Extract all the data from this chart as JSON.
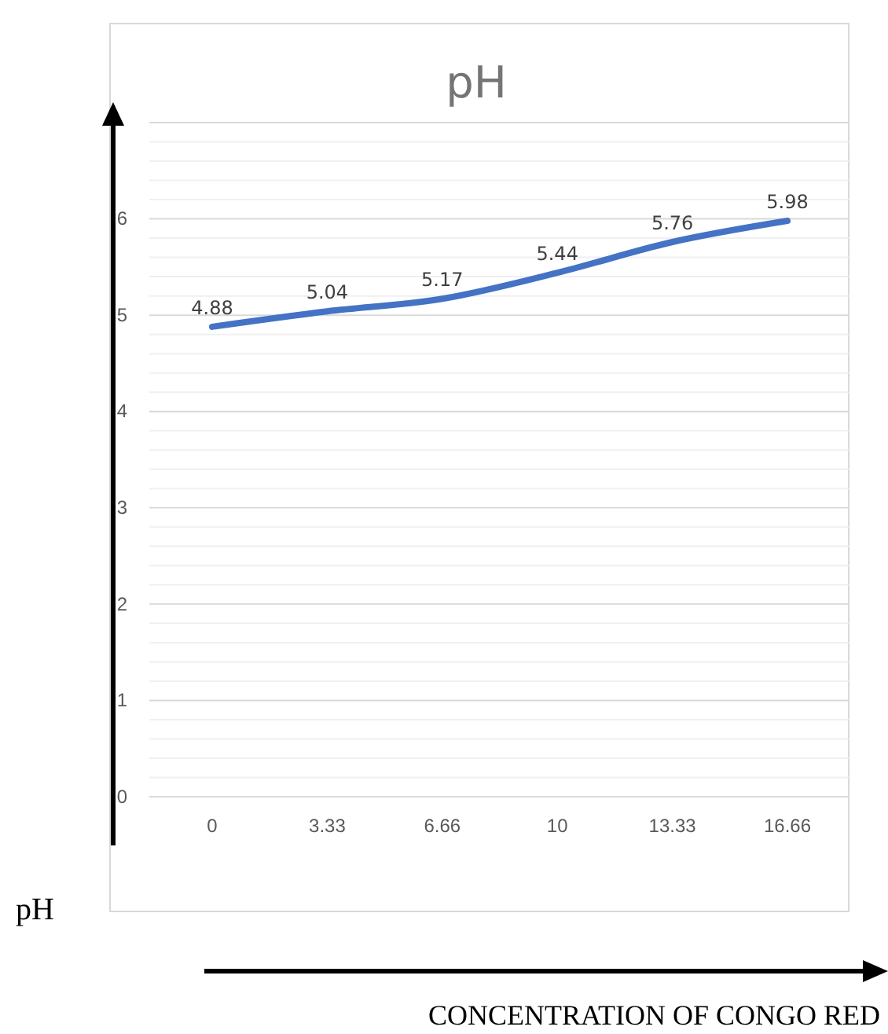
{
  "chart_data": {
    "type": "line",
    "title": "pH",
    "annotations": [
      "CONCENTRATION OF CONGO RED"
    ],
    "ylabel": "pH",
    "categories": [
      "0",
      "3.33",
      "6.66",
      "10",
      "13.33",
      "16.66"
    ],
    "series": [
      {
        "color": "#4472c4",
        "values": [
          4.88,
          5.04,
          5.17,
          5.44,
          5.76,
          5.98
        ]
      }
    ],
    "ylim": [
      0,
      7
    ],
    "yticks": [
      0,
      1,
      2,
      3,
      4,
      5,
      6,
      {
        "value": 7,
        "label": null
      }
    ],
    "grid": "y",
    "data_labels": true,
    "marker": "none",
    "line_style": "solid"
  }
}
